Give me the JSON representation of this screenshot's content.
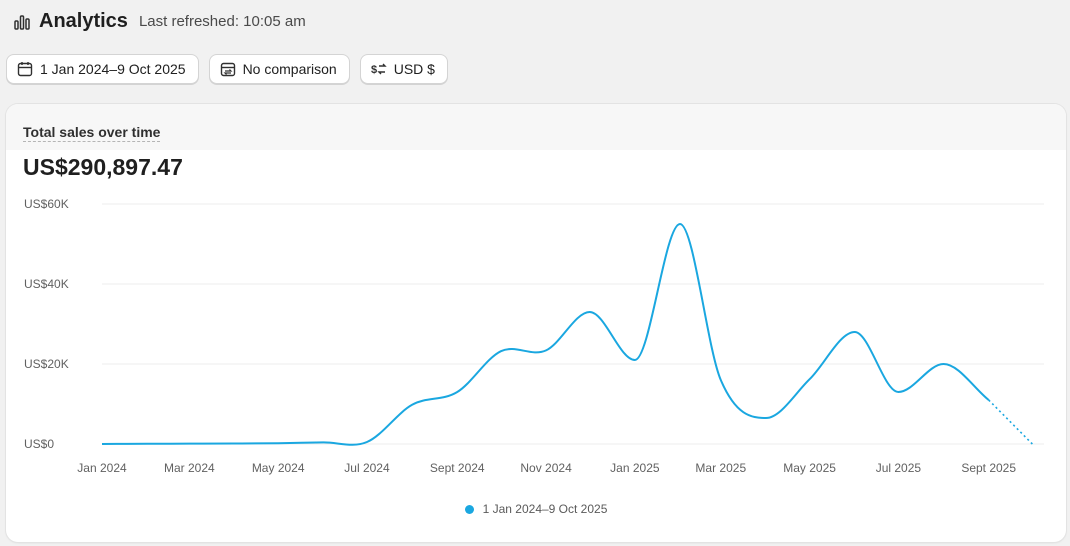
{
  "header": {
    "title": "Analytics",
    "refreshed": "Last refreshed: 10:05 am"
  },
  "filters": {
    "date_range": "1 Jan 2024–9 Oct 2025",
    "comparison": "No comparison",
    "currency": "USD $"
  },
  "card": {
    "title": "Total sales over time",
    "total": "US$290,897.47"
  },
  "colors": {
    "series": "#1aa7e0",
    "grid": "#ececec"
  },
  "chart_data": {
    "type": "line",
    "ylim": [
      0,
      60000
    ],
    "yticks": [
      0,
      20000,
      40000,
      60000
    ],
    "ytick_labels": [
      "US$0",
      "US$20K",
      "US$40K",
      "US$60K"
    ],
    "xticks": [
      "2024-01-01",
      "2024-03-01",
      "2024-05-01",
      "2024-07-01",
      "2024-09-01",
      "2024-11-01",
      "2025-01-01",
      "2025-03-01",
      "2025-05-01",
      "2025-07-01",
      "2025-09-01"
    ],
    "xtick_labels": [
      "Jan 2024",
      "Mar 2024",
      "May 2024",
      "Jul 2024",
      "Sept 2024",
      "Nov 2024",
      "Jan 2025",
      "Mar 2025",
      "May 2025",
      "Jul 2025",
      "Sept 2025"
    ],
    "grid": true,
    "legend": "bottom-center",
    "series": [
      {
        "name": "1 Jan 2024–9 Oct 2025",
        "x": [
          "2024-01-01",
          "2024-02-01",
          "2024-03-01",
          "2024-04-01",
          "2024-05-01",
          "2024-06-01",
          "2024-07-01",
          "2024-08-01",
          "2024-09-01",
          "2024-10-01",
          "2024-11-01",
          "2024-12-01",
          "2025-01-01",
          "2025-02-01",
          "2025-03-01",
          "2025-04-01",
          "2025-05-01",
          "2025-06-01",
          "2025-07-01",
          "2025-08-01",
          "2025-09-01",
          "2025-10-01"
        ],
        "values": [
          0,
          50,
          80,
          120,
          200,
          400,
          500,
          9800,
          13000,
          23200,
          23400,
          33000,
          21000,
          55000,
          16000,
          6500,
          16200,
          28000,
          13000,
          20000,
          11000,
          0
        ],
        "projected_from_index": 20
      }
    ]
  }
}
